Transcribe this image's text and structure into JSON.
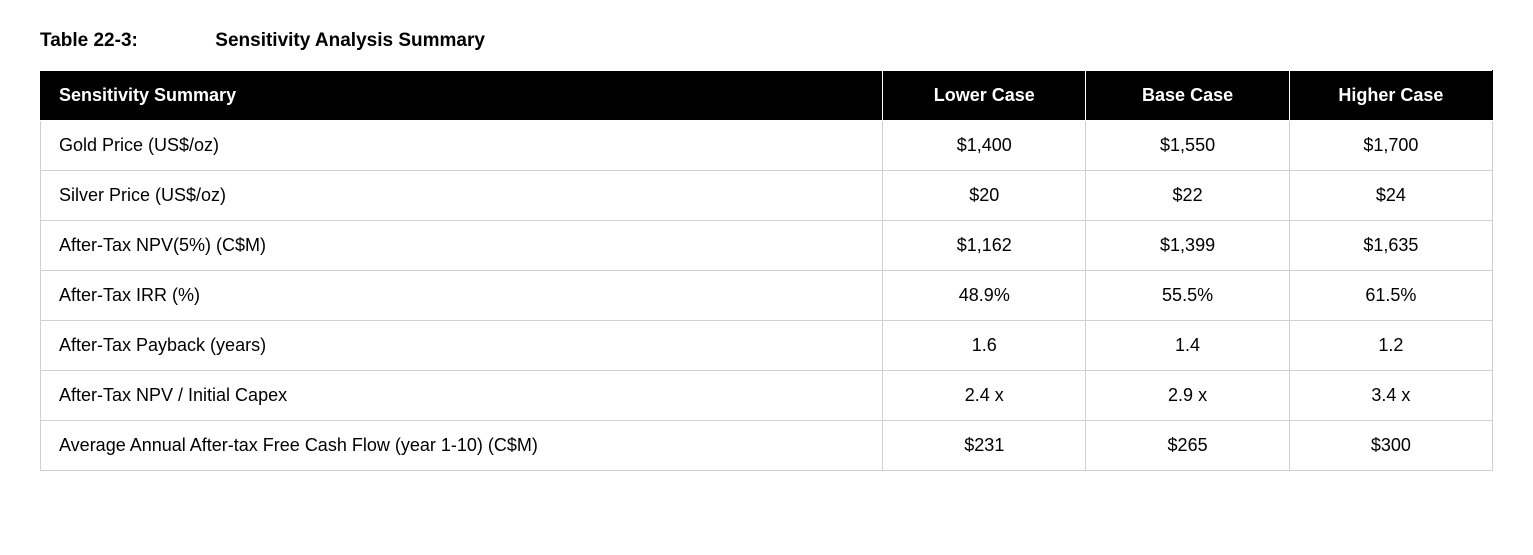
{
  "caption": {
    "number": "Table 22-3:",
    "title": "Sensitivity Analysis Summary"
  },
  "table": {
    "columns": [
      "Sensitivity Summary",
      "Lower Case",
      "Base Case",
      "Higher Case"
    ],
    "rows": [
      {
        "label": "Gold Price (US$/oz)",
        "lower": "$1,400",
        "base": "$1,550",
        "higher": "$1,700"
      },
      {
        "label": "Silver Price (US$/oz)",
        "lower": "$20",
        "base": "$22",
        "higher": "$24"
      },
      {
        "label": "After-Tax NPV(5%) (C$M)",
        "lower": "$1,162",
        "base": "$1,399",
        "higher": "$1,635"
      },
      {
        "label": "After-Tax IRR (%)",
        "lower": "48.9%",
        "base": "55.5%",
        "higher": "61.5%"
      },
      {
        "label": "After-Tax Payback (years)",
        "lower": "1.6",
        "base": "1.4",
        "higher": "1.2"
      },
      {
        "label": "After-Tax NPV / Initial Capex",
        "lower": "2.4 x",
        "base": "2.9 x",
        "higher": "3.4 x"
      },
      {
        "label": "Average Annual After-tax Free Cash Flow (year 1-10) (C$M)",
        "lower": "$231",
        "base": "$265",
        "higher": "$300"
      }
    ],
    "header_bg": "#000000",
    "header_fg": "#ffffff",
    "body_fg": "#000000",
    "border_color": "#d0d0d0",
    "header_fontsize": 18,
    "body_fontsize": 18
  }
}
